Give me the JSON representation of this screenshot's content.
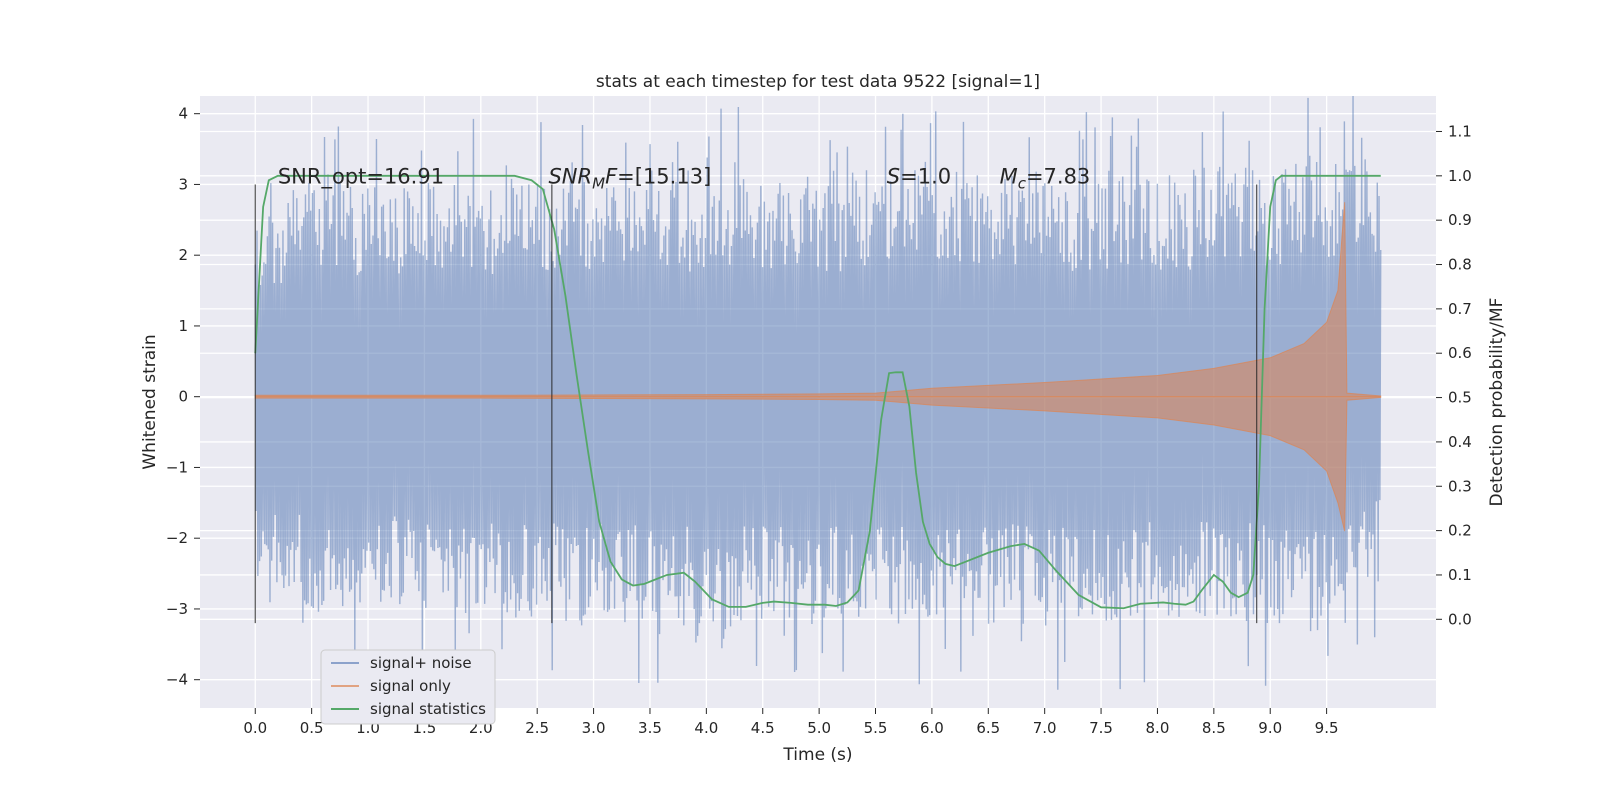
{
  "chart_data": {
    "type": "line",
    "title": "stats at each timestep for test data 9522 [signal=1]",
    "xlabel": "Time (s)",
    "ylabel": "Whitened strain",
    "y2label": "Detection probability/MF",
    "xlim": [
      -0.49,
      10.47
    ],
    "ylim": [
      -4.4,
      4.25
    ],
    "y2lim": [
      -0.2,
      1.18
    ],
    "xticks": [
      0.0,
      0.5,
      1.0,
      1.5,
      2.0,
      2.5,
      3.0,
      3.5,
      4.0,
      4.5,
      5.0,
      5.5,
      6.0,
      6.5,
      7.0,
      7.5,
      8.0,
      8.5,
      9.0,
      9.5
    ],
    "yticks": [
      -4,
      -3,
      -2,
      -1,
      0,
      1,
      2,
      3,
      4
    ],
    "y2ticks": [
      0.0,
      0.1,
      0.2,
      0.3,
      0.4,
      0.5,
      0.6,
      0.7,
      0.8,
      0.9,
      1.0,
      1.1
    ],
    "grid": true,
    "legend_position": "lower-left",
    "colors": {
      "background": "#eaeaf2",
      "noise": "#4c72b0",
      "signal": "#dd8452",
      "statistics": "#55a868",
      "markers": "#262626"
    },
    "annotations": [
      {
        "prefix": "SNR_opt=16.91",
        "sub": "",
        "suffix": "",
        "x": 0.2
      },
      {
        "prefix": "SNR",
        "sub": "M",
        "suffix": "F=[15.13]",
        "x": 2.6
      },
      {
        "prefix": "S",
        "sub": "",
        "suffix": "=1.0",
        "x": 5.6
      },
      {
        "prefix": "M",
        "sub": "c",
        "suffix": "=7.83",
        "x": 6.6
      }
    ],
    "vertical_markers": [
      0.0,
      2.63,
      8.88
    ],
    "series": [
      {
        "name": "signal+ noise",
        "axis": "left",
        "envelope_upper": [
          [
            0.0,
            2.4
          ],
          [
            0.5,
            3.2
          ],
          [
            1.0,
            3.0
          ],
          [
            2.0,
            3.1
          ],
          [
            3.0,
            3.2
          ],
          [
            4.0,
            3.2
          ],
          [
            5.0,
            3.2
          ],
          [
            6.0,
            3.2
          ],
          [
            7.0,
            3.2
          ],
          [
            8.0,
            3.2
          ],
          [
            9.0,
            3.3
          ],
          [
            9.5,
            3.5
          ],
          [
            9.98,
            3.3
          ]
        ],
        "envelope_lower": [
          [
            0.0,
            -2.4
          ],
          [
            0.5,
            -3.1
          ],
          [
            1.0,
            -3.0
          ],
          [
            2.0,
            -3.1
          ],
          [
            3.0,
            -3.2
          ],
          [
            4.0,
            -3.3
          ],
          [
            5.0,
            -3.3
          ],
          [
            6.0,
            -3.2
          ],
          [
            7.0,
            -3.3
          ],
          [
            8.0,
            -3.2
          ],
          [
            9.0,
            -3.2
          ],
          [
            9.5,
            -3.3
          ],
          [
            9.98,
            -2.6
          ]
        ]
      },
      {
        "name": "signal only",
        "axis": "left",
        "envelope_upper": [
          [
            0.0,
            0.02
          ],
          [
            2.0,
            0.02
          ],
          [
            4.0,
            0.03
          ],
          [
            5.0,
            0.04
          ],
          [
            5.5,
            0.05
          ],
          [
            6.0,
            0.12
          ],
          [
            7.0,
            0.2
          ],
          [
            8.0,
            0.3
          ],
          [
            8.5,
            0.4
          ],
          [
            9.0,
            0.55
          ],
          [
            9.3,
            0.75
          ],
          [
            9.5,
            1.05
          ],
          [
            9.6,
            1.5
          ],
          [
            9.66,
            2.75
          ],
          [
            9.68,
            0.05
          ],
          [
            9.98,
            0.01
          ]
        ],
        "envelope_lower": [
          [
            0.0,
            -0.02
          ],
          [
            2.0,
            -0.02
          ],
          [
            4.0,
            -0.03
          ],
          [
            5.0,
            -0.04
          ],
          [
            5.5,
            -0.05
          ],
          [
            6.0,
            -0.12
          ],
          [
            7.0,
            -0.2
          ],
          [
            8.0,
            -0.3
          ],
          [
            8.5,
            -0.4
          ],
          [
            9.0,
            -0.55
          ],
          [
            9.3,
            -0.75
          ],
          [
            9.5,
            -1.05
          ],
          [
            9.6,
            -1.5
          ],
          [
            9.66,
            -1.9
          ],
          [
            9.68,
            -0.05
          ],
          [
            9.98,
            -0.01
          ]
        ]
      },
      {
        "name": "signal statistics",
        "axis": "right",
        "x": [
          0.0,
          0.07,
          0.12,
          0.2,
          0.35,
          0.6,
          1.0,
          1.5,
          2.0,
          2.3,
          2.45,
          2.55,
          2.65,
          2.75,
          2.85,
          2.95,
          3.05,
          3.15,
          3.25,
          3.35,
          3.45,
          3.55,
          3.65,
          3.8,
          3.9,
          4.05,
          4.2,
          4.35,
          4.5,
          4.6,
          4.75,
          4.9,
          5.05,
          5.15,
          5.25,
          5.35,
          5.45,
          5.55,
          5.62,
          5.68,
          5.74,
          5.8,
          5.86,
          5.92,
          5.98,
          6.05,
          6.12,
          6.2,
          6.3,
          6.5,
          6.7,
          6.82,
          6.95,
          7.1,
          7.3,
          7.5,
          7.7,
          7.85,
          8.05,
          8.15,
          8.25,
          8.32,
          8.4,
          8.5,
          8.58,
          8.65,
          8.72,
          8.8,
          8.85,
          8.9,
          8.95,
          9.0,
          9.05,
          9.1,
          9.2,
          9.4,
          9.7,
          9.98
        ],
        "y": [
          0.6,
          0.93,
          0.99,
          1.0,
          1.0,
          1.0,
          1.0,
          1.0,
          1.0,
          1.0,
          0.99,
          0.97,
          0.88,
          0.73,
          0.55,
          0.38,
          0.22,
          0.13,
          0.09,
          0.076,
          0.08,
          0.09,
          0.1,
          0.105,
          0.085,
          0.045,
          0.028,
          0.028,
          0.037,
          0.04,
          0.037,
          0.033,
          0.033,
          0.03,
          0.038,
          0.065,
          0.2,
          0.45,
          0.555,
          0.557,
          0.557,
          0.48,
          0.33,
          0.22,
          0.17,
          0.14,
          0.125,
          0.12,
          0.13,
          0.15,
          0.165,
          0.17,
          0.155,
          0.11,
          0.055,
          0.027,
          0.025,
          0.035,
          0.038,
          0.035,
          0.033,
          0.04,
          0.068,
          0.1,
          0.085,
          0.06,
          0.05,
          0.06,
          0.1,
          0.3,
          0.7,
          0.93,
          0.99,
          1.0,
          1.0,
          1.0,
          1.0,
          1.0
        ]
      }
    ]
  }
}
